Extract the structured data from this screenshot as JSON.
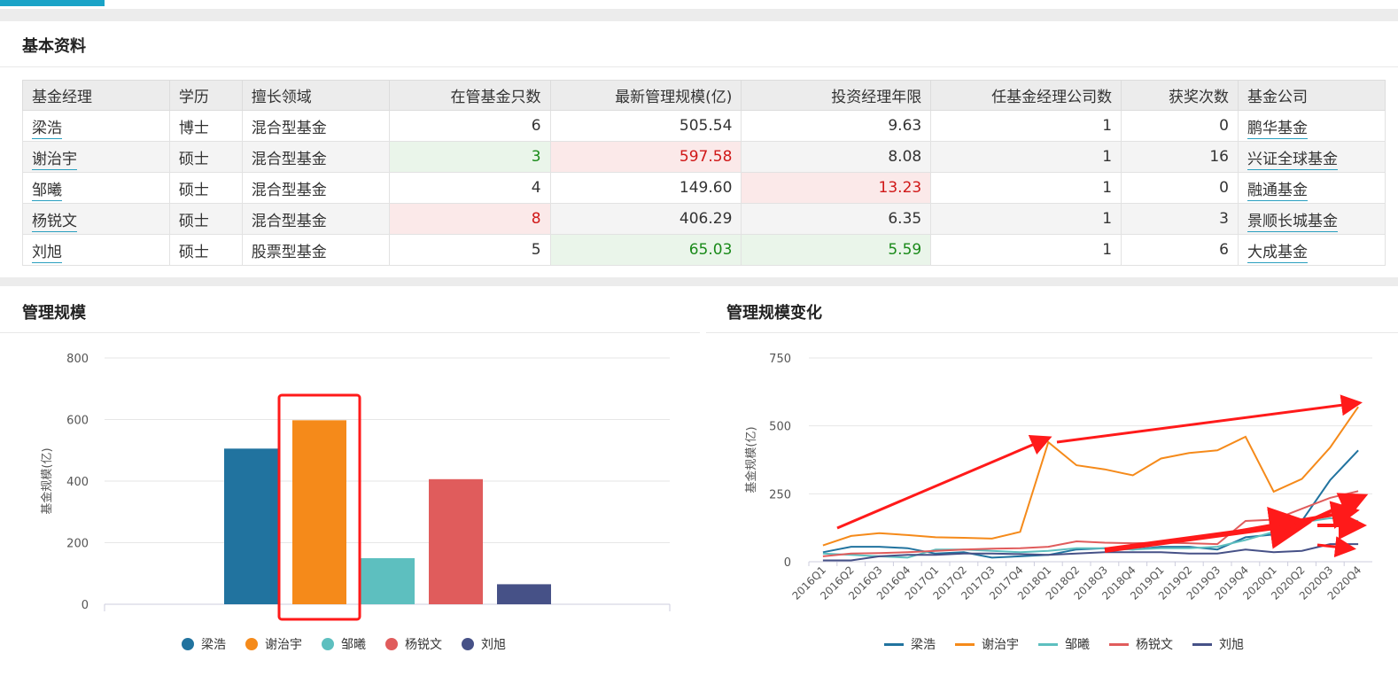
{
  "sections": {
    "basic_info": "基本资料",
    "scale": "管理规模",
    "scale_change": "管理规模变化"
  },
  "table": {
    "headers": [
      "基金经理",
      "学历",
      "擅长领域",
      "在管基金只数",
      "最新管理规模(亿)",
      "投资经理年限",
      "任基金经理公司数",
      "获奖次数",
      "基金公司"
    ],
    "rows": [
      {
        "name": "梁浩",
        "edu": "博士",
        "field": "混合型基金",
        "funds": "6",
        "scale": "505.54",
        "years": "9.63",
        "companies": "1",
        "awards": "0",
        "company": "鹏华基金"
      },
      {
        "name": "谢治宇",
        "edu": "硕士",
        "field": "混合型基金",
        "funds": "3",
        "scale": "597.58",
        "years": "8.08",
        "companies": "1",
        "awards": "16",
        "company": "兴证全球基金"
      },
      {
        "name": "邹曦",
        "edu": "硕士",
        "field": "混合型基金",
        "funds": "4",
        "scale": "149.60",
        "years": "13.23",
        "companies": "1",
        "awards": "0",
        "company": "融通基金"
      },
      {
        "name": "杨锐文",
        "edu": "硕士",
        "field": "混合型基金",
        "funds": "8",
        "scale": "406.29",
        "years": "6.35",
        "companies": "1",
        "awards": "3",
        "company": "景顺长城基金"
      },
      {
        "name": "刘旭",
        "edu": "硕士",
        "field": "股票型基金",
        "funds": "5",
        "scale": "65.03",
        "years": "5.59",
        "companies": "1",
        "awards": "6",
        "company": "大成基金"
      }
    ]
  },
  "colors": {
    "liang": "#21739f",
    "xie": "#f58a1a",
    "zou": "#5dbfbf",
    "yang": "#e05c5c",
    "liu": "#465187",
    "annotation": "#ff1a1a",
    "link_underline": "#2a9fbf",
    "highlight_green": "#1a8a1a",
    "highlight_red": "#d01818"
  },
  "chart_data": [
    {
      "type": "bar",
      "title": "管理规模",
      "ylabel": "基金规模(亿)",
      "ylim": [
        0,
        800
      ],
      "yticks": [
        0,
        200,
        400,
        600,
        800
      ],
      "categories": [
        "梁浩",
        "谢治宇",
        "邹曦",
        "杨锐文",
        "刘旭"
      ],
      "values": [
        505.54,
        597.58,
        149.6,
        406.29,
        65.03
      ],
      "legend": [
        "梁浩",
        "谢治宇",
        "邹曦",
        "杨锐文",
        "刘旭"
      ],
      "legend_placement": "bottom",
      "annotation": "red rectangle around 谢治宇 bar"
    },
    {
      "type": "line",
      "title": "管理规模变化",
      "ylabel": "基金规模(亿)",
      "ylim": [
        0,
        750
      ],
      "yticks": [
        0,
        250,
        500,
        750
      ],
      "x": [
        "2016Q1",
        "2016Q2",
        "2016Q3",
        "2016Q4",
        "2017Q1",
        "2017Q2",
        "2017Q3",
        "2017Q4",
        "2018Q1",
        "2018Q2",
        "2018Q3",
        "2018Q4",
        "2019Q1",
        "2019Q2",
        "2019Q3",
        "2019Q4",
        "2020Q1",
        "2020Q2",
        "2020Q3",
        "2020Q4"
      ],
      "series": [
        {
          "name": "梁浩",
          "values": [
            35,
            55,
            55,
            50,
            30,
            35,
            15,
            20,
            25,
            45,
            50,
            45,
            55,
            55,
            45,
            90,
            100,
            150,
            300,
            410
          ]
        },
        {
          "name": "谢治宇",
          "values": [
            60,
            95,
            105,
            98,
            90,
            88,
            85,
            110,
            440,
            355,
            340,
            318,
            380,
            400,
            410,
            460,
            258,
            305,
            420,
            570
          ]
        },
        {
          "name": "邹曦",
          "values": [
            30,
            25,
            20,
            15,
            45,
            45,
            40,
            35,
            40,
            50,
            50,
            45,
            50,
            50,
            55,
            80,
            110,
            145,
            160,
            150
          ]
        },
        {
          "name": "杨锐文",
          "values": [
            20,
            30,
            32,
            35,
            40,
            45,
            48,
            50,
            55,
            75,
            70,
            68,
            70,
            68,
            65,
            150,
            155,
            195,
            235,
            260
          ]
        },
        {
          "name": "刘旭",
          "values": [
            5,
            5,
            20,
            25,
            25,
            30,
            30,
            28,
            25,
            30,
            35,
            35,
            35,
            30,
            30,
            45,
            35,
            40,
            65,
            65
          ]
        }
      ],
      "legend": [
        "梁浩",
        "谢治宇",
        "邹曦",
        "杨锐文",
        "刘旭"
      ],
      "legend_placement": "bottom",
      "annotation": "red arrows indicating upward trends"
    }
  ]
}
